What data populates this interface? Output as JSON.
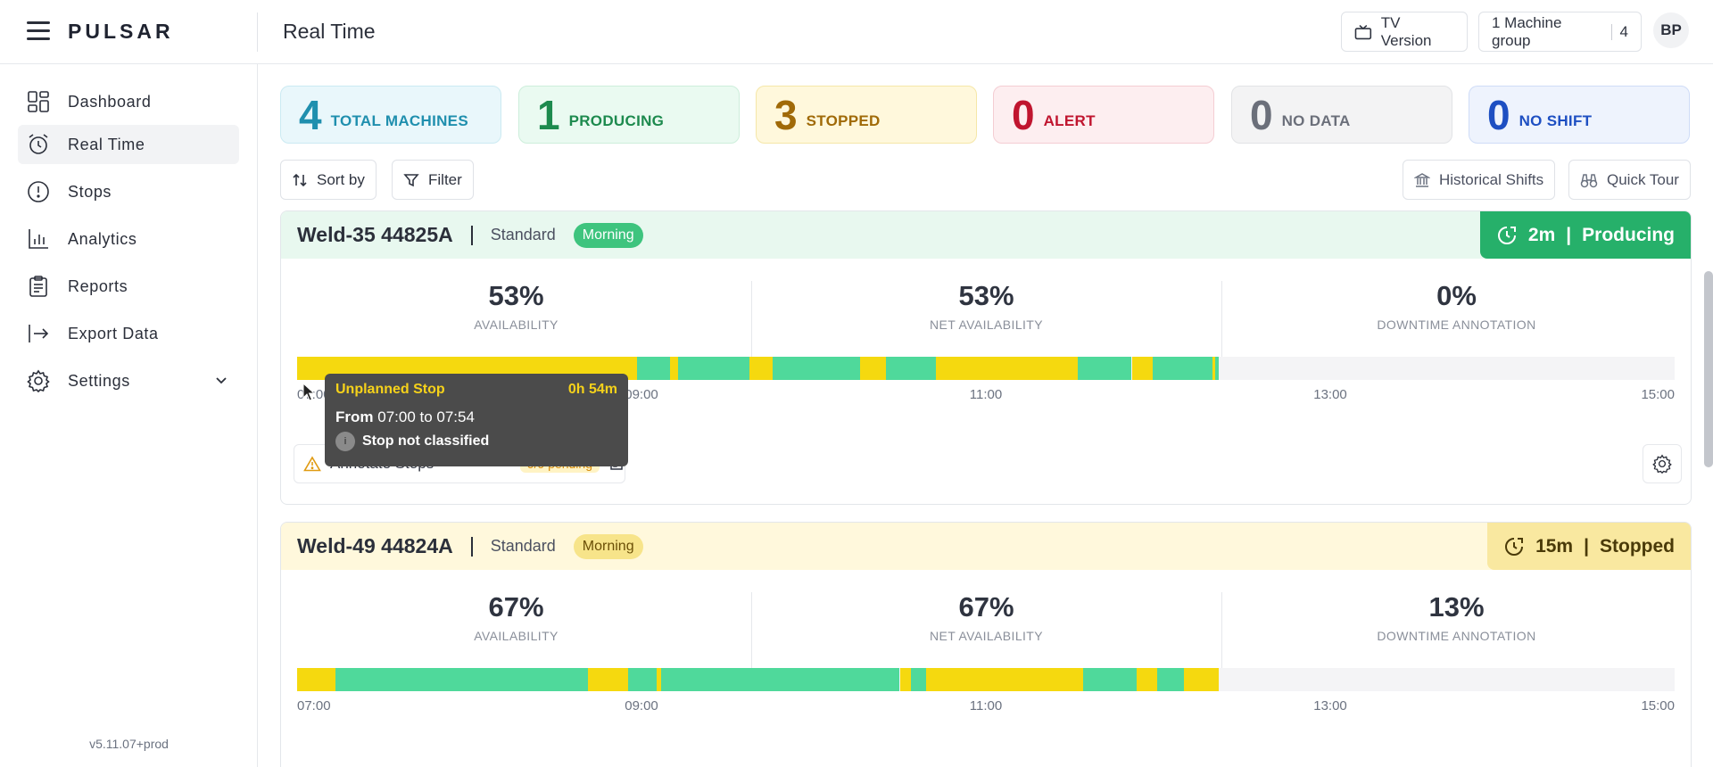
{
  "app": {
    "logo": "PULSAR",
    "page_title": "Real Time",
    "version": "v5.11.07+prod"
  },
  "topbar": {
    "tv_version": "TV Version",
    "machine_group": "1 Machine group",
    "machine_group_count": "4",
    "avatar": "BP"
  },
  "sidebar": {
    "items": [
      {
        "label": "Dashboard",
        "icon": "dashboard-icon"
      },
      {
        "label": "Real Time",
        "icon": "alarm-clock-icon",
        "active": true
      },
      {
        "label": "Stops",
        "icon": "alert-circle-icon"
      },
      {
        "label": "Analytics",
        "icon": "bar-chart-icon"
      },
      {
        "label": "Reports",
        "icon": "clipboard-icon"
      },
      {
        "label": "Export Data",
        "icon": "export-icon"
      },
      {
        "label": "Settings",
        "icon": "gear-icon"
      }
    ]
  },
  "stats": [
    {
      "value": "4",
      "label": "TOTAL MACHINES",
      "bg": "#e9f7fb",
      "border": "#cbeaf2",
      "color": "#1f8fae"
    },
    {
      "value": "1",
      "label": "PRODUCING",
      "bg": "#eafaf1",
      "border": "#cdeedb",
      "color": "#1d8a4e"
    },
    {
      "value": "3",
      "label": "STOPPED",
      "bg": "#fff8dc",
      "border": "#f5e7a8",
      "color": "#a06a08"
    },
    {
      "value": "0",
      "label": "ALERT",
      "bg": "#fdeef0",
      "border": "#f4cdd3",
      "color": "#c0152f"
    },
    {
      "value": "0",
      "label": "NO DATA",
      "bg": "#f3f3f4",
      "border": "#e2e3e6",
      "color": "#6b6f7a"
    },
    {
      "value": "0",
      "label": "NO SHIFT",
      "bg": "#eef3fd",
      "border": "#cfdcf7",
      "color": "#1e4fc2"
    }
  ],
  "toolbar": {
    "sort": "Sort by",
    "filter": "Filter",
    "historical": "Historical Shifts",
    "tour": "Quick Tour"
  },
  "machines": [
    {
      "name": "Weld-35 44825A",
      "type": "Standard",
      "shift": "Morning",
      "status_time": "2m",
      "status": "Producing",
      "metrics": [
        {
          "value": "53%",
          "label": "AVAILABILITY"
        },
        {
          "value": "53%",
          "label": "NET AVAILABILITY"
        },
        {
          "value": "0%",
          "label": "DOWNTIME ANNOTATION"
        }
      ],
      "annotate_label": "Annotate Stops",
      "pending": "9/9 pending"
    },
    {
      "name": "Weld-49 44824A",
      "type": "Standard",
      "shift": "Morning",
      "status_time": "15m",
      "status": "Stopped",
      "metrics": [
        {
          "value": "67%",
          "label": "AVAILABILITY"
        },
        {
          "value": "67%",
          "label": "NET AVAILABILITY"
        },
        {
          "value": "13%",
          "label": "DOWNTIME ANNOTATION"
        }
      ]
    }
  ],
  "ticks": [
    "07:00",
    "09:00",
    "11:00",
    "13:00",
    "15:00"
  ],
  "tooltip": {
    "title": "Unplanned Stop",
    "duration": "0h 54m",
    "from_label": "From",
    "range": "07:00 to 07:54",
    "classification": "Stop not classified"
  },
  "colors": {
    "producing": "#4fd99b",
    "stopped": "#f5d90f",
    "empty": "#f4f4f6"
  }
}
